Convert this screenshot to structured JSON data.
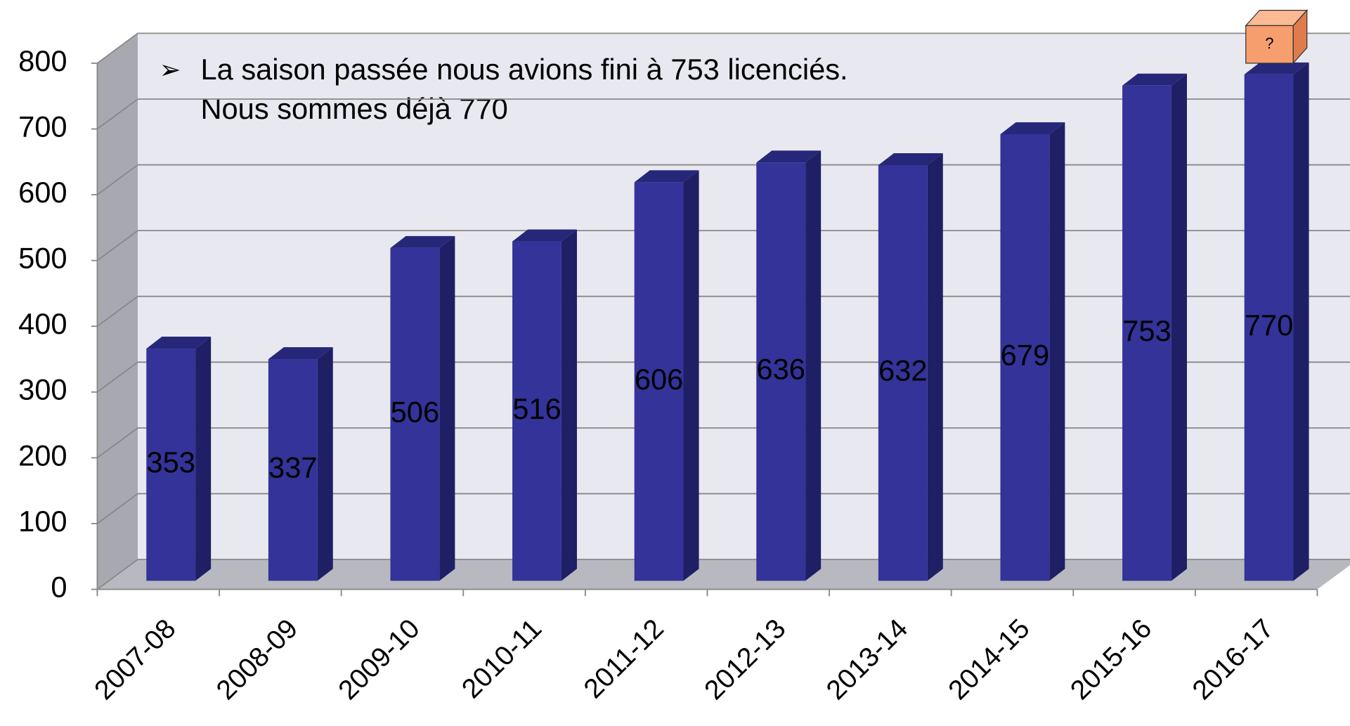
{
  "chart_data": {
    "type": "bar",
    "categories": [
      "2007-08",
      "2008-09",
      "2009-10",
      "2010-11",
      "2011-12",
      "2012-13",
      "2013-14",
      "2014-15",
      "2015-16",
      "2016-17"
    ],
    "values": [
      353,
      337,
      506,
      516,
      606,
      636,
      632,
      679,
      753,
      770
    ],
    "color": "#333399",
    "ylim": [
      0,
      800
    ],
    "yticks": [
      0,
      100,
      200,
      300,
      400,
      500,
      600,
      700,
      800
    ],
    "grid": true,
    "annotation": [
      "La saison passée nous avions fini à 753 licenciés.",
      "Nous sommes déjà 770"
    ],
    "box_label": "?"
  }
}
